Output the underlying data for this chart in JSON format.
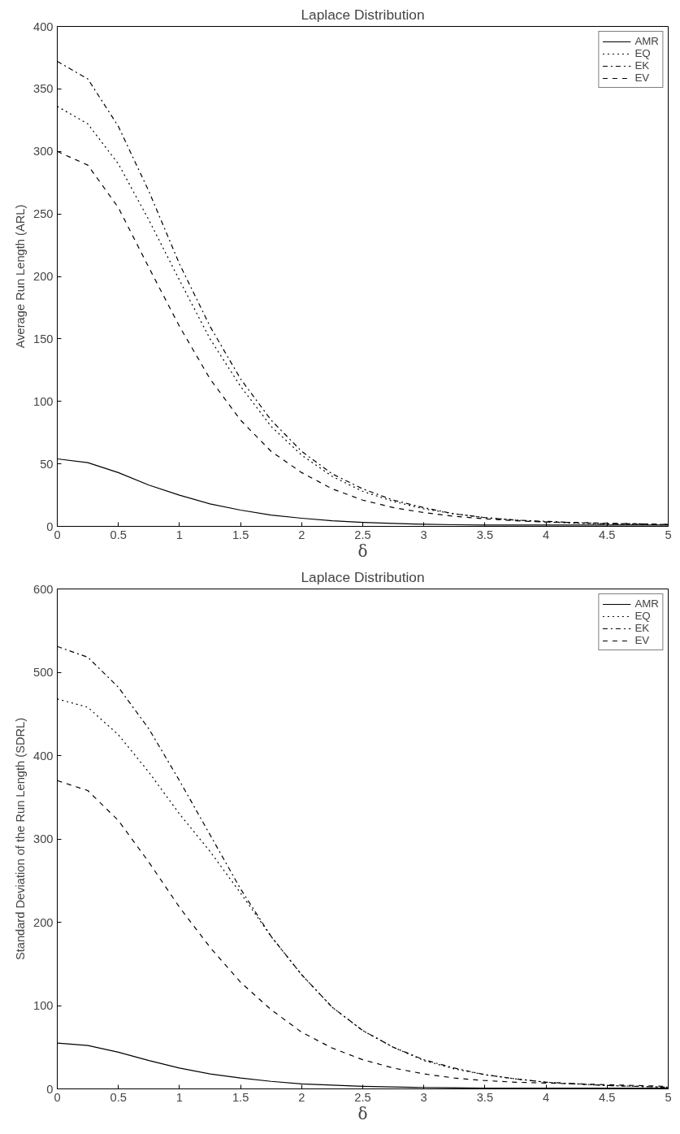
{
  "chart_data": [
    {
      "type": "line",
      "title": "Laplace Distribution",
      "xlabel": "δ",
      "ylabel": "Average Run Length (ARL)",
      "x": [
        0,
        0.25,
        0.5,
        0.75,
        1,
        1.25,
        1.5,
        1.75,
        2,
        2.25,
        2.5,
        2.75,
        3,
        3.25,
        3.5,
        3.75,
        4,
        4.25,
        4.5,
        4.75,
        5
      ],
      "xlim": [
        0,
        5
      ],
      "xticks": [
        0,
        0.5,
        1,
        1.5,
        2,
        2.5,
        3,
        3.5,
        4,
        4.5,
        5
      ],
      "ylim": [
        0,
        400
      ],
      "yticks": [
        0,
        50,
        100,
        150,
        200,
        250,
        300,
        350,
        400
      ],
      "grid": false,
      "legend": "top right",
      "marker": "none",
      "series": [
        {
          "name": "AMR",
          "color": "#000000",
          "line_style": "solid",
          "values": [
            54,
            51,
            43,
            33,
            25,
            18,
            13,
            9,
            6.5,
            4.5,
            3.2,
            2.3,
            1.7,
            1.3,
            1.1,
            1,
            1,
            1,
            1,
            1,
            1
          ]
        },
        {
          "name": "EQ",
          "color": "#000000",
          "line_style": "dotted",
          "values": [
            336,
            322,
            290,
            245,
            197,
            150,
            112,
            80,
            57,
            40,
            28,
            20,
            14,
            10,
            7,
            5,
            3.5,
            2.5,
            2,
            1.5,
            1.2
          ]
        },
        {
          "name": "EK",
          "color": "#000000",
          "line_style": "dashdot",
          "values": [
            372,
            358,
            320,
            268,
            210,
            160,
            118,
            85,
            60,
            42,
            30,
            21,
            15,
            10,
            7,
            5,
            4,
            3,
            2,
            2,
            1.5
          ]
        },
        {
          "name": "EV",
          "color": "#000000",
          "line_style": "dashed",
          "values": [
            300,
            289,
            255,
            207,
            160,
            118,
            85,
            60,
            43,
            30,
            21,
            15,
            11,
            8,
            6,
            4.5,
            3.5,
            3,
            2.5,
            2,
            1.5
          ]
        }
      ]
    },
    {
      "type": "line",
      "title": "Laplace Distribution",
      "xlabel": "δ",
      "ylabel": "Standard Deviation of the Run Length (SDRL)",
      "x": [
        0,
        0.25,
        0.5,
        0.75,
        1,
        1.25,
        1.5,
        1.75,
        2,
        2.25,
        2.5,
        2.75,
        3,
        3.25,
        3.5,
        3.75,
        4,
        4.25,
        4.5,
        4.75,
        5
      ],
      "xlim": [
        0,
        5
      ],
      "xticks": [
        0,
        0.5,
        1,
        1.5,
        2,
        2.5,
        3,
        3.5,
        4,
        4.5,
        5
      ],
      "ylim": [
        0,
        600
      ],
      "yticks": [
        0,
        100,
        200,
        300,
        400,
        500,
        600
      ],
      "grid": false,
      "legend": "top right",
      "marker": "none",
      "series": [
        {
          "name": "AMR",
          "color": "#000000",
          "line_style": "solid",
          "values": [
            55,
            52,
            44,
            34,
            25,
            18,
            13,
            9,
            6,
            4.5,
            3,
            2.3,
            1.7,
            1.3,
            1,
            1,
            1,
            1,
            1,
            1,
            1
          ]
        },
        {
          "name": "EQ",
          "color": "#000000",
          "line_style": "dotted",
          "values": [
            468,
            458,
            425,
            380,
            330,
            285,
            235,
            183,
            137,
            98,
            70,
            50,
            34,
            24,
            17,
            12,
            8,
            6,
            4,
            3,
            2
          ]
        },
        {
          "name": "EK",
          "color": "#000000",
          "line_style": "dashdot",
          "values": [
            531,
            518,
            482,
            432,
            370,
            305,
            240,
            183,
            137,
            98,
            70,
            50,
            35,
            25,
            17,
            12,
            8,
            6,
            4,
            3,
            2
          ]
        },
        {
          "name": "EV",
          "color": "#000000",
          "line_style": "dashed",
          "values": [
            370,
            358,
            322,
            272,
            218,
            170,
            128,
            95,
            68,
            49,
            35,
            25,
            18,
            13,
            10,
            8,
            7,
            6,
            5,
            4,
            3
          ]
        }
      ]
    }
  ]
}
